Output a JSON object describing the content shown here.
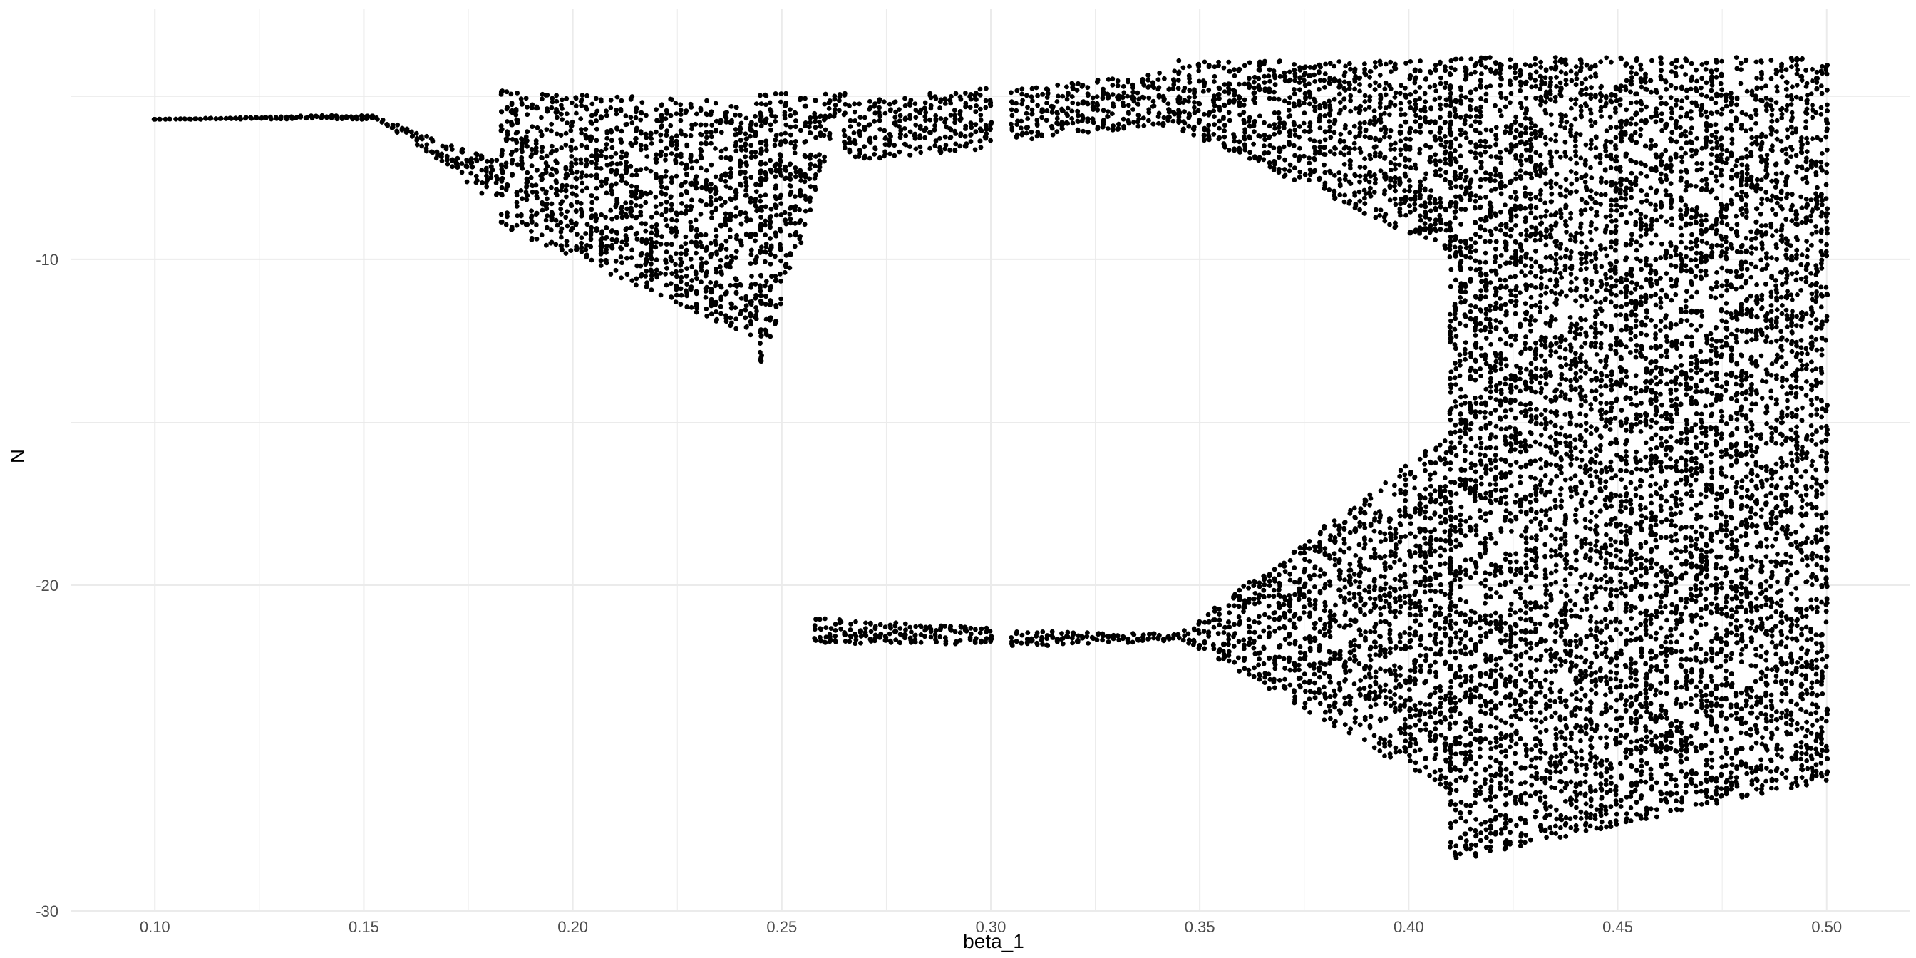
{
  "chart_data": {
    "type": "scatter",
    "title": "",
    "xlabel": "beta_1",
    "ylabel": "N",
    "xlim": [
      0.08,
      0.52
    ],
    "ylim": [
      -30,
      -2.3
    ],
    "x_ticks": [
      0.1,
      0.15,
      0.2,
      0.25,
      0.3,
      0.35,
      0.4,
      0.45,
      0.5
    ],
    "x_tick_labels": [
      "0.10",
      "0.15",
      "0.20",
      "0.25",
      "0.30",
      "0.35",
      "0.40",
      "0.45",
      "0.50"
    ],
    "y_ticks": [
      -10,
      -20,
      -30
    ],
    "y_tick_labels": [
      "-10",
      "-20",
      "-30"
    ],
    "y_minor_ticks": [
      -5,
      -15,
      -25
    ],
    "x_minor_ticks": [
      0.125,
      0.175,
      0.225,
      0.275,
      0.325,
      0.375,
      0.425,
      0.475
    ],
    "grid": true,
    "legend": "none",
    "point_color": "#000000",
    "background": "#ffffff",
    "grid_color": "#ebebeb",
    "series": [
      {
        "description": "bifurcation attractor values of N across beta_1 (sampled)",
        "segments": [
          {
            "x": [
              0.1,
              0.152
            ],
            "y": [
              [
                -5.7,
                -5.7
              ],
              [
                -5.7,
                -5.55
              ]
            ]
          },
          {
            "x": [
              0.152,
              0.183
            ],
            "y": [
              [
                -5.6,
                -8.4
              ],
              [
                -5.6,
                -7.0
              ]
            ]
          },
          {
            "x": [
              0.183,
              0.245
            ],
            "y": [
              [
                -9.0,
                -12.5
              ],
              [
                -4.8,
                -5.2
              ]
            ]
          },
          {
            "x": [
              0.245,
              0.265
            ],
            "y": [
              [
                -13.5,
                -5.0
              ],
              [
                -4.9,
                -4.9
              ]
            ]
          },
          {
            "x": [
              0.265,
              0.3
            ],
            "y": [
              [
                -7.0,
                -6.6
              ],
              [
                -5.2,
                -4.7
              ]
            ]
          },
          {
            "x": [
              0.305,
              0.345
            ],
            "y": [
              [
                -6.4,
                -5.9
              ],
              [
                -4.8,
                -4.2
              ]
            ]
          },
          {
            "x": [
              0.345,
              0.41
            ],
            "y": [
              [
                -6.0,
                -9.8
              ],
              [
                -3.9,
                -3.9
              ]
            ]
          },
          {
            "x": [
              0.41,
              0.5
            ],
            "y": [
              [
                -28.5,
                -26.0
              ],
              [
                -3.8,
                -3.8
              ]
            ]
          },
          {
            "x": [
              0.258,
              0.3
            ],
            "y": [
              [
                -21.8,
                -21.8
              ],
              [
                -21.0,
                -21.3
              ]
            ]
          },
          {
            "x": [
              0.305,
              0.345
            ],
            "y": [
              [
                -21.9,
                -21.7
              ],
              [
                -21.4,
                -21.5
              ]
            ]
          },
          {
            "x": [
              0.345,
              0.41
            ],
            "y": [
              [
                -21.6,
                -26.4
              ],
              [
                -21.5,
                -15.3
              ]
            ]
          }
        ]
      }
    ]
  }
}
